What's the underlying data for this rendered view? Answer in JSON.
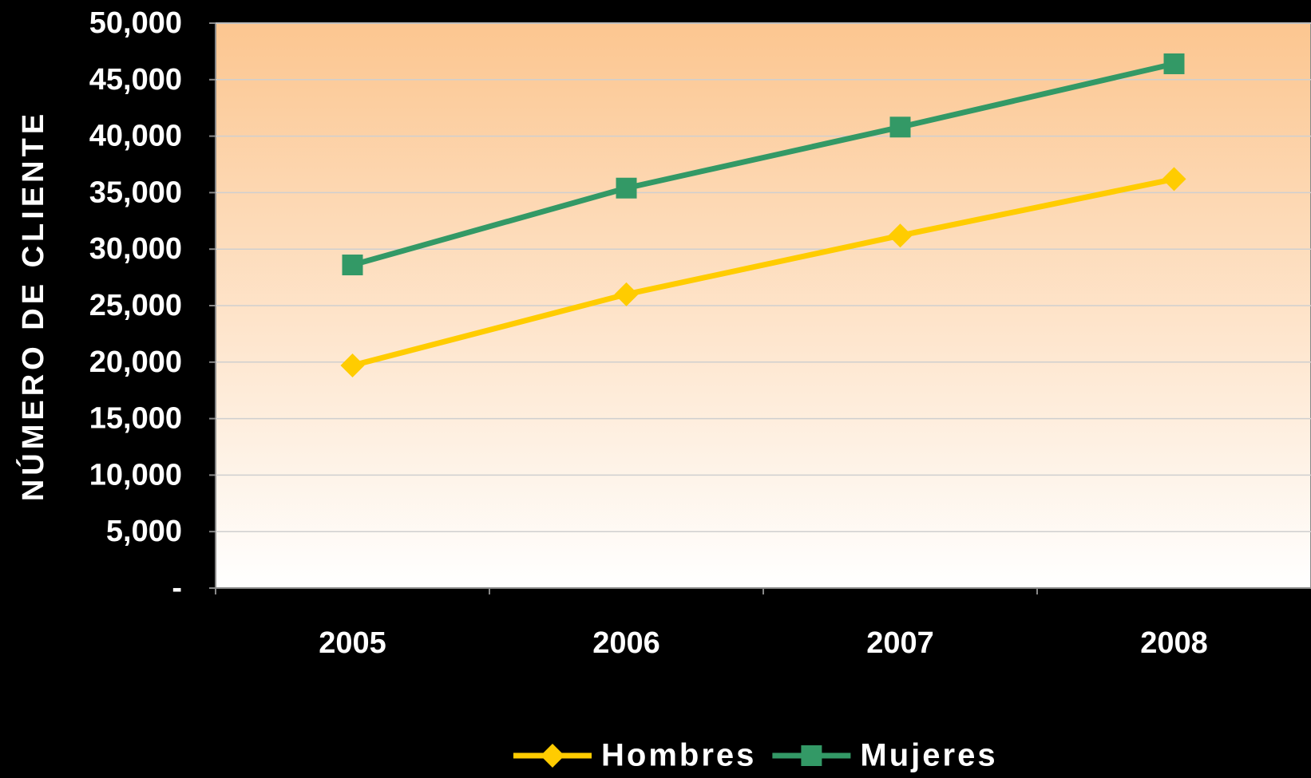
{
  "chart_data": {
    "type": "line",
    "y_axis_label": "NÚMERO DE CLIENTE",
    "categories": [
      "2005",
      "2006",
      "2007",
      "2008"
    ],
    "series": [
      {
        "name": "Hombres",
        "color": "#ffcc00",
        "marker": "diamond",
        "values": [
          19700,
          26000,
          31200,
          36200
        ]
      },
      {
        "name": "Mujeres",
        "color": "#339966",
        "marker": "square",
        "values": [
          28600,
          35400,
          40800,
          46400
        ]
      }
    ],
    "ylim": [
      0,
      50000
    ],
    "yticks": [
      {
        "value": 0,
        "label": "-"
      },
      {
        "value": 5000,
        "label": "5,000"
      },
      {
        "value": 10000,
        "label": "10,000"
      },
      {
        "value": 15000,
        "label": "15,000"
      },
      {
        "value": 20000,
        "label": "20,000"
      },
      {
        "value": 25000,
        "label": "25,000"
      },
      {
        "value": 30000,
        "label": "30,000"
      },
      {
        "value": 35000,
        "label": "35,000"
      },
      {
        "value": 40000,
        "label": "40,000"
      },
      {
        "value": 45000,
        "label": "45,000"
      },
      {
        "value": 50000,
        "label": "50,000"
      }
    ],
    "grid": true,
    "legend": "bottom"
  }
}
